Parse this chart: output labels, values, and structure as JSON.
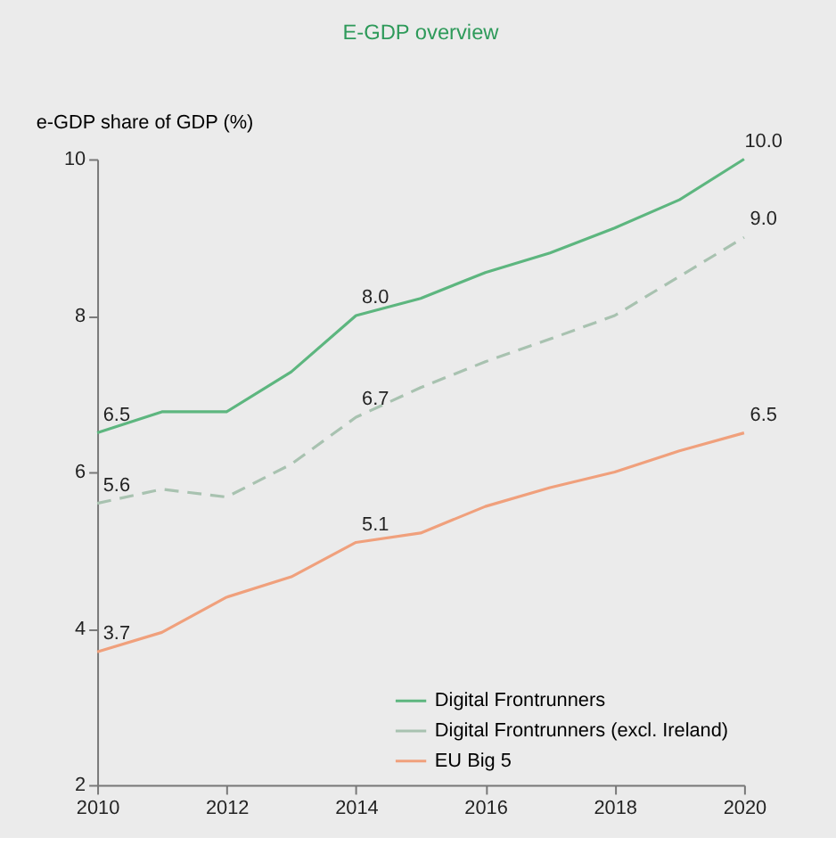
{
  "chart_data": {
    "type": "line",
    "title": "E-GDP overview",
    "ylabel": "e-GDP share of GDP (%)",
    "x": [
      2010,
      2011,
      2012,
      2013,
      2014,
      2015,
      2016,
      2017,
      2018,
      2019,
      2020
    ],
    "series": [
      {
        "name": "Digital Frontrunners",
        "color": "#5db67f",
        "line_style": "solid",
        "values": [
          6.5,
          6.77,
          6.77,
          7.28,
          8.0,
          8.22,
          8.55,
          8.8,
          9.12,
          9.48,
          10.0
        ]
      },
      {
        "name": "Digital Frontrunners (excl. Ireland)",
        "color": "#a8c2b0",
        "line_style": "dashed",
        "values": [
          5.6,
          5.78,
          5.68,
          6.1,
          6.7,
          7.08,
          7.41,
          7.7,
          8.0,
          8.5,
          9.0
        ]
      },
      {
        "name": "EU Big 5",
        "color": "#f0a07c",
        "line_style": "solid",
        "values": [
          3.7,
          3.95,
          4.4,
          4.66,
          5.1,
          5.22,
          5.56,
          5.8,
          6.0,
          6.27,
          6.5
        ]
      }
    ],
    "annotations": [
      {
        "text": "6.5",
        "x": 2010,
        "y": 6.5
      },
      {
        "text": "8.0",
        "x": 2014,
        "y": 8.0
      },
      {
        "text": "10.0",
        "x": 2020,
        "y": 10.0
      },
      {
        "text": "5.6",
        "x": 2010,
        "y": 5.6
      },
      {
        "text": "6.7",
        "x": 2014,
        "y": 6.7
      },
      {
        "text": "9.0",
        "x": 2020,
        "y": 9.0
      },
      {
        "text": "3.7",
        "x": 2010,
        "y": 3.7
      },
      {
        "text": "5.1",
        "x": 2014,
        "y": 5.1
      },
      {
        "text": "6.5",
        "x": 2020,
        "y": 6.5
      }
    ],
    "xlim": [
      2010,
      2020
    ],
    "xticks": [
      2010,
      2012,
      2014,
      2016,
      2018,
      2020
    ],
    "ylim": [
      2,
      10
    ],
    "yticks": [
      2,
      4,
      6,
      8,
      10
    ],
    "grid": false,
    "legend": "bottom right",
    "marker": "none"
  }
}
